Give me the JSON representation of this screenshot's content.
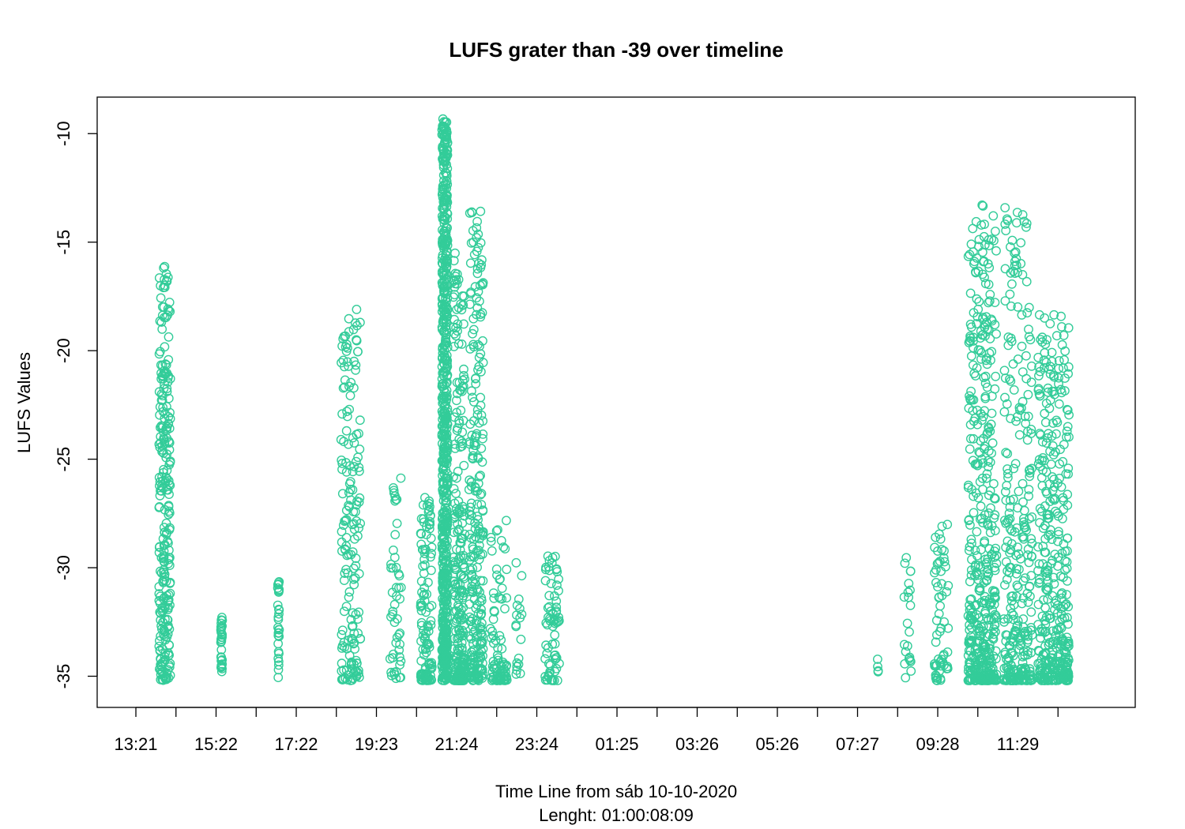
{
  "chart_data": {
    "type": "scatter",
    "title": "LUFS grater than -39 over timeline",
    "xlabel": "Time Line from sáb 10-10-2020",
    "xlabel_sub": "Lenght: 01:00:08:09",
    "ylabel": "LUFS Values",
    "marker": "open-circle",
    "color": "#33CC99",
    "x_ticks": [
      "13:21",
      "",
      "15:22",
      "",
      "17:22",
      "",
      "19:23",
      "",
      "21:24",
      "",
      "23:24",
      "",
      "01:25",
      "",
      "03:26",
      "",
      "05:26",
      "",
      "07:27",
      "",
      "09:28",
      "",
      "11:29",
      ""
    ],
    "y_ticks": [
      -10,
      -15,
      -20,
      -25,
      -30,
      -35
    ],
    "ylim": [
      -35.2,
      -9.3
    ],
    "x_unit": "minutes since 13:21",
    "xlim": [
      -95,
      1365
    ],
    "clusters": [
      {
        "x": 0,
        "x_spread": 8,
        "ymin": -35.2,
        "ymax": -16.0,
        "n": 260,
        "bias": 1.4
      },
      {
        "x": 80,
        "x_spread": 1,
        "ymin": -35.1,
        "ymax": -32.1,
        "n": 30,
        "bias": 1.0
      },
      {
        "x": 160,
        "x_spread": 1,
        "ymin": -35.1,
        "ymax": -30.6,
        "n": 30,
        "bias": 1.0
      },
      {
        "x": 262,
        "x_spread": 14,
        "ymin": -35.2,
        "ymax": -18.0,
        "n": 170,
        "bias": 1.4
      },
      {
        "x": 325,
        "x_spread": 8,
        "ymin": -35.1,
        "ymax": -25.4,
        "n": 50,
        "bias": 1.6
      },
      {
        "x": 368,
        "x_spread": 8,
        "ymin": -35.2,
        "ymax": -26.5,
        "n": 120,
        "bias": 2.0
      },
      {
        "x": 394,
        "x_spread": 4,
        "ymin": -35.2,
        "ymax": -9.3,
        "n": 650,
        "bias": 1.3
      },
      {
        "x": 414,
        "x_spread": 8,
        "ymin": -35.2,
        "ymax": -15.5,
        "n": 260,
        "bias": 2.4
      },
      {
        "x": 438,
        "x_spread": 10,
        "ymin": -35.2,
        "ymax": -13.5,
        "n": 260,
        "bias": 1.8
      },
      {
        "x": 470,
        "x_spread": 12,
        "ymin": -35.2,
        "ymax": -27.4,
        "n": 90,
        "bias": 2.4
      },
      {
        "x": 498,
        "x_spread": 5,
        "ymin": -35.1,
        "ymax": -29.6,
        "n": 18,
        "bias": 1.2
      },
      {
        "x": 545,
        "x_spread": 10,
        "ymin": -35.2,
        "ymax": -29.4,
        "n": 70,
        "bias": 1.5
      },
      {
        "x": 1003,
        "x_spread": 1,
        "ymin": -34.8,
        "ymax": -34.2,
        "n": 4,
        "bias": 1.0
      },
      {
        "x": 1045,
        "x_spread": 5,
        "ymin": -35.2,
        "ymax": -29.3,
        "n": 22,
        "bias": 1.0
      },
      {
        "x": 1092,
        "x_spread": 10,
        "ymin": -35.2,
        "ymax": -28.0,
        "n": 60,
        "bias": 1.6
      },
      {
        "x": 1150,
        "x_spread": 20,
        "ymin": -35.2,
        "ymax": -13.2,
        "n": 450,
        "bias": 2.2
      },
      {
        "x": 1200,
        "x_spread": 20,
        "ymin": -35.2,
        "ymax": -13.2,
        "n": 300,
        "bias": 2.2
      },
      {
        "x": 1250,
        "x_spread": 22,
        "ymin": -35.2,
        "ymax": -18.0,
        "n": 380,
        "bias": 2.2
      }
    ]
  }
}
